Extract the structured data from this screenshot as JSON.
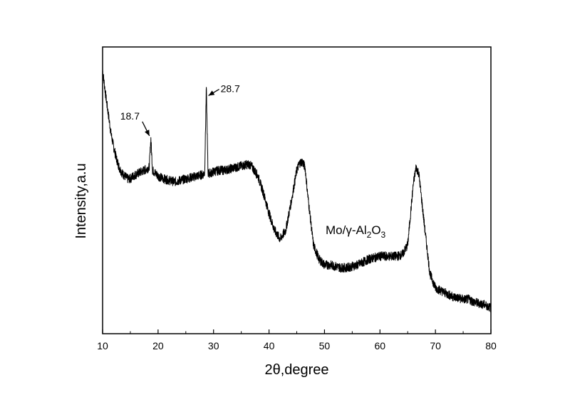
{
  "chart_data": {
    "type": "line",
    "title": "",
    "xlabel": "2θ,degree",
    "ylabel": "Intensity,a.u",
    "xlim": [
      10,
      80
    ],
    "ylim": [
      0,
      100
    ],
    "x_ticks": [
      10,
      20,
      30,
      40,
      50,
      60,
      70,
      80
    ],
    "y_ticks_labeled": false,
    "grid": false,
    "legend": "none",
    "line_color": "#000000",
    "series": [
      {
        "x": [
          10,
          10.5,
          11,
          11.5,
          12,
          12.5,
          13,
          13.5,
          14,
          14.5,
          15,
          15.5,
          16,
          16.5,
          17,
          17.5,
          18,
          18.4,
          18.7,
          19,
          19.5,
          20,
          21,
          22,
          23,
          24,
          25,
          26,
          27,
          28,
          28.4,
          28.7,
          29,
          29.5,
          30,
          31,
          32,
          33,
          34,
          35,
          36,
          36.5,
          37,
          38,
          39,
          40,
          41,
          42,
          43,
          44,
          45,
          45.5,
          46,
          46.5,
          47,
          48,
          49,
          50,
          51,
          52,
          53,
          54,
          55,
          56,
          57,
          58,
          59,
          60,
          61,
          62,
          63,
          64,
          65,
          66,
          66.5,
          67,
          68,
          69,
          70,
          71,
          72,
          73,
          74,
          75,
          76,
          77,
          78,
          79,
          80
        ],
        "y": [
          92,
          84,
          77,
          70,
          65,
          61,
          58,
          56,
          55,
          54,
          54,
          55,
          55.5,
          56,
          56.5,
          57,
          57.5,
          58,
          68,
          57,
          56,
          55,
          54,
          53.5,
          53,
          53.5,
          54,
          54.5,
          55,
          55.5,
          56,
          86,
          56,
          56,
          56.5,
          57,
          57,
          57.5,
          58,
          58.5,
          59,
          59,
          58,
          55,
          49,
          42,
          36,
          33,
          36,
          46,
          57,
          59.5,
          60,
          58,
          48,
          31,
          26,
          24,
          24,
          23.5,
          23,
          23,
          23.5,
          24,
          25,
          26,
          26.5,
          27,
          27,
          27,
          27,
          27.5,
          31,
          52,
          58,
          56,
          38,
          21,
          16,
          15,
          14,
          13,
          12.5,
          12,
          12,
          11,
          10.5,
          10,
          9
        ]
      }
    ],
    "annotations": [
      {
        "text": "18.7",
        "x": 18.7,
        "y": 68
      },
      {
        "text": "28.7",
        "x": 28.7,
        "y": 86
      }
    ],
    "sample_label": {
      "main": "Mo/γ-Al",
      "sub1": "2",
      "mid": "O",
      "sub2": "3"
    }
  }
}
